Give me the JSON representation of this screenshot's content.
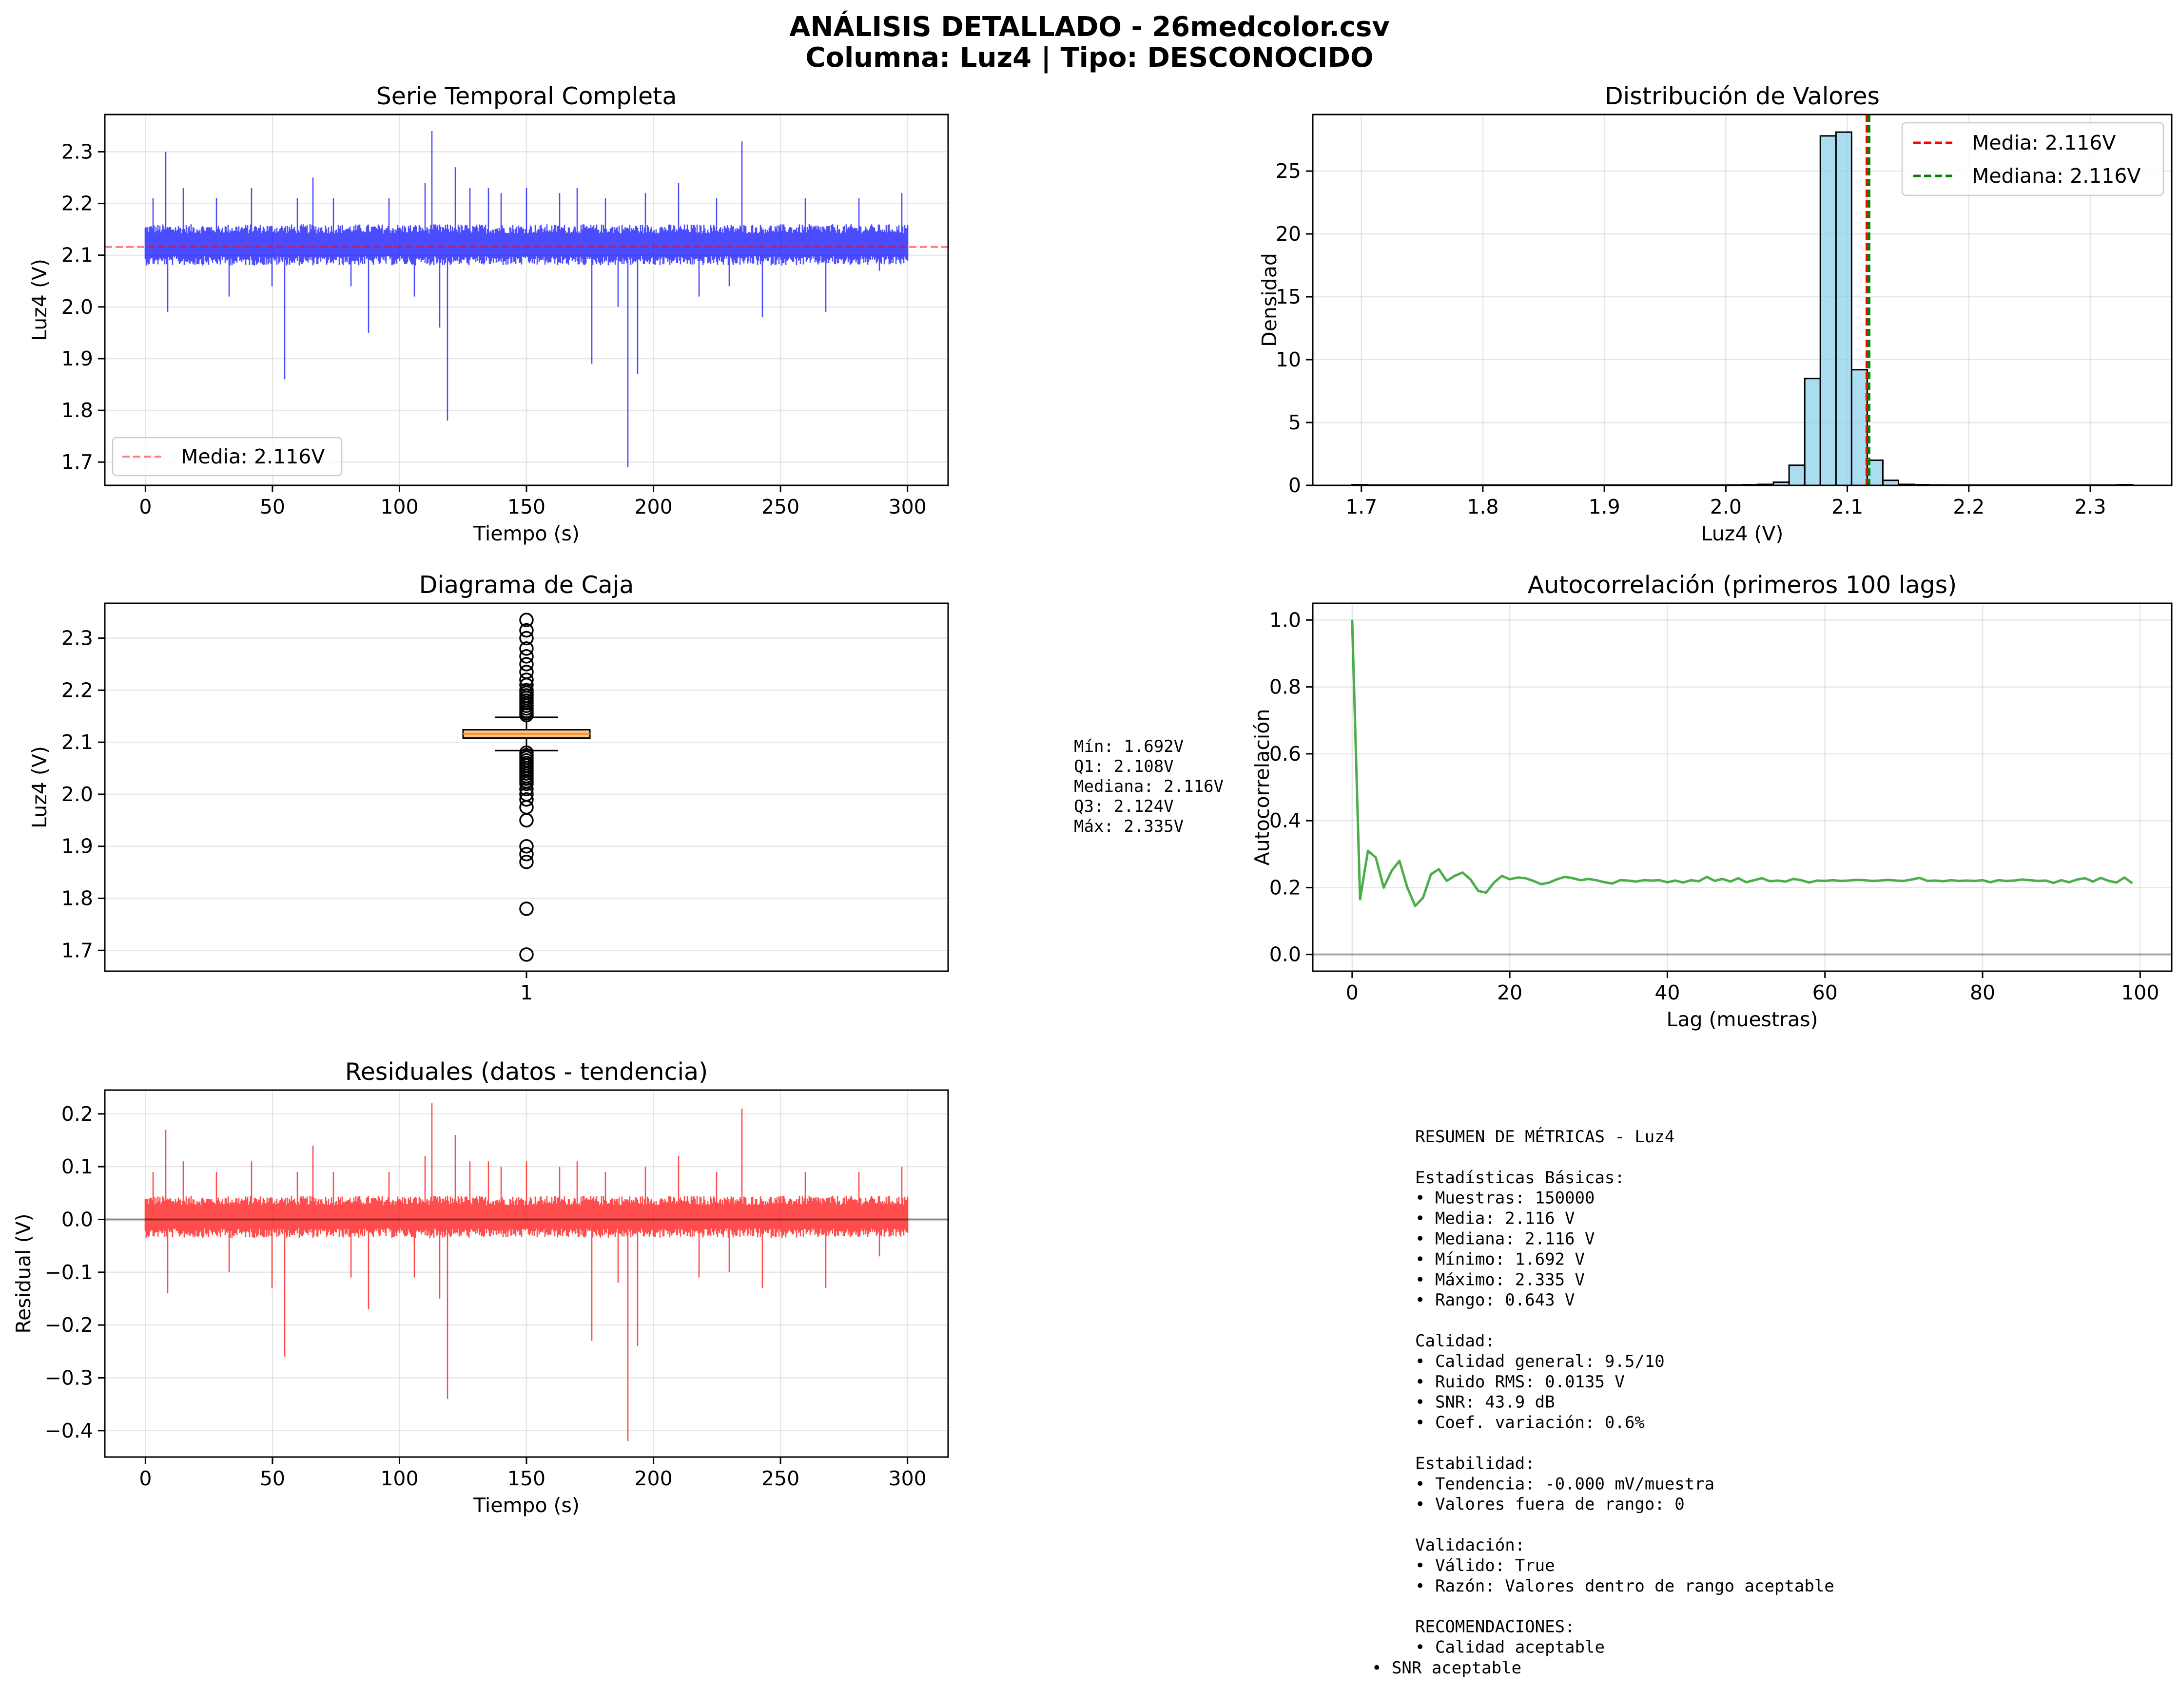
{
  "header": {
    "title_line1": "ANÁLISIS DETALLADO - 26medcolor.csv",
    "title_line2": "Columna: Luz4 | Tipo: DESCONOCIDO"
  },
  "colors": {
    "series": "#0000ff",
    "mean_line": "#ff0000",
    "median_line": "#008000",
    "hist_fill": "#87ceeb",
    "box_fill": "#f9c784",
    "acf_line": "#2ca02c",
    "residual_line": "#ff0000"
  },
  "chart_data": [
    {
      "id": "series",
      "type": "line",
      "title": "Serie Temporal Completa",
      "xlabel": "Tiempo (s)",
      "ylabel": "Luz4 (V)",
      "xlim": [
        -16,
        316
      ],
      "ylim": [
        1.655,
        2.372
      ],
      "xticks": [
        0,
        50,
        100,
        150,
        200,
        250,
        300
      ],
      "yticks": [
        1.7,
        1.8,
        1.9,
        2.0,
        2.1,
        2.2,
        2.3
      ],
      "band": {
        "x": [
          0,
          300
        ],
        "low": 2.08,
        "high": 2.16
      },
      "spikes": [
        {
          "x": 3,
          "y": 2.21
        },
        {
          "x": 8,
          "y": 2.3
        },
        {
          "x": 9,
          "y": 1.99
        },
        {
          "x": 15,
          "y": 2.23
        },
        {
          "x": 28,
          "y": 2.21
        },
        {
          "x": 33,
          "y": 2.02
        },
        {
          "x": 42,
          "y": 2.23
        },
        {
          "x": 50,
          "y": 2.04
        },
        {
          "x": 55,
          "y": 1.86
        },
        {
          "x": 60,
          "y": 2.21
        },
        {
          "x": 66,
          "y": 2.25
        },
        {
          "x": 74,
          "y": 2.21
        },
        {
          "x": 81,
          "y": 2.04
        },
        {
          "x": 88,
          "y": 1.95
        },
        {
          "x": 96,
          "y": 2.21
        },
        {
          "x": 106,
          "y": 2.02
        },
        {
          "x": 110,
          "y": 2.24
        },
        {
          "x": 113,
          "y": 2.34
        },
        {
          "x": 116,
          "y": 1.96
        },
        {
          "x": 119,
          "y": 1.78
        },
        {
          "x": 122,
          "y": 2.27
        },
        {
          "x": 128,
          "y": 2.23
        },
        {
          "x": 135,
          "y": 2.23
        },
        {
          "x": 140,
          "y": 2.22
        },
        {
          "x": 150,
          "y": 2.23
        },
        {
          "x": 163,
          "y": 2.22
        },
        {
          "x": 170,
          "y": 2.23
        },
        {
          "x": 176,
          "y": 1.89
        },
        {
          "x": 181,
          "y": 2.21
        },
        {
          "x": 186,
          "y": 2.0
        },
        {
          "x": 190,
          "y": 1.69
        },
        {
          "x": 194,
          "y": 1.87
        },
        {
          "x": 197,
          "y": 2.22
        },
        {
          "x": 210,
          "y": 2.24
        },
        {
          "x": 218,
          "y": 2.02
        },
        {
          "x": 225,
          "y": 2.21
        },
        {
          "x": 230,
          "y": 2.04
        },
        {
          "x": 235,
          "y": 2.32
        },
        {
          "x": 243,
          "y": 1.98
        },
        {
          "x": 260,
          "y": 2.21
        },
        {
          "x": 268,
          "y": 1.99
        },
        {
          "x": 281,
          "y": 2.21
        },
        {
          "x": 289,
          "y": 2.07
        },
        {
          "x": 298,
          "y": 2.22
        }
      ],
      "mean": 2.116,
      "legend": [
        {
          "label": "Media: 2.116V",
          "color": "#ff0000",
          "style": "dashed",
          "alpha": 0.5
        }
      ],
      "legend_position": "lower left"
    },
    {
      "id": "histogram",
      "type": "bar",
      "title": "Distribución de Valores",
      "xlabel": "Luz4 (V)",
      "ylabel": "Densidad",
      "xlim": [
        1.66,
        2.367
      ],
      "ylim": [
        0,
        29.5
      ],
      "xticks": [
        1.7,
        1.8,
        1.9,
        2.0,
        2.1,
        2.2,
        2.3
      ],
      "yticks": [
        0,
        5,
        10,
        15,
        20,
        25
      ],
      "bins": {
        "start": 1.692,
        "width": 0.01286
      },
      "values": [
        0.05,
        0.02,
        0.02,
        0.02,
        0.02,
        0.02,
        0.02,
        0.02,
        0.02,
        0.02,
        0.02,
        0.02,
        0.02,
        0.02,
        0.02,
        0.02,
        0.02,
        0.02,
        0.02,
        0.02,
        0.02,
        0.02,
        0.02,
        0.02,
        0.03,
        0.05,
        0.08,
        0.25,
        1.6,
        8.5,
        27.8,
        28.1,
        9.2,
        2.0,
        0.4,
        0.08,
        0.05,
        0.03,
        0.02,
        0.02,
        0.02,
        0.02,
        0.02,
        0.02,
        0.02,
        0.02,
        0.02,
        0.02,
        0.02,
        0.05
      ],
      "mean": 2.116,
      "median": 2.116,
      "legend": [
        {
          "label": "Media: 2.116V",
          "color": "#ff0000",
          "style": "dashed"
        },
        {
          "label": "Mediana: 2.116V",
          "color": "#008000",
          "style": "dashed"
        }
      ],
      "legend_position": "upper right"
    },
    {
      "id": "boxplot",
      "type": "box",
      "title": "Diagrama de Caja",
      "ylabel": "Luz4 (V)",
      "category": "1",
      "ylim": [
        1.66,
        2.367
      ],
      "yticks": [
        1.7,
        1.8,
        1.9,
        2.0,
        2.1,
        2.2,
        2.3
      ],
      "q1": 2.108,
      "median": 2.116,
      "q3": 2.124,
      "whisker_low": 2.084,
      "whisker_high": 2.148,
      "outliers_high": [
        2.152,
        2.156,
        2.16,
        2.165,
        2.17,
        2.175,
        2.18,
        2.185,
        2.19,
        2.195,
        2.2,
        2.21,
        2.22,
        2.235,
        2.25,
        2.265,
        2.28,
        2.3,
        2.315,
        2.335
      ],
      "outliers_low": [
        2.08,
        2.075,
        2.07,
        2.065,
        2.06,
        2.055,
        2.05,
        2.045,
        2.04,
        2.035,
        2.03,
        2.025,
        2.02,
        2.01,
        2.0,
        1.99,
        1.975,
        1.95,
        1.9,
        1.885,
        1.87,
        1.78,
        1.692
      ]
    },
    {
      "id": "acf",
      "type": "line",
      "title": "Autocorrelación (primeros 100 lags)",
      "xlabel": "Lag (muestras)",
      "ylabel": "Autocorrelación",
      "xlim": [
        -5,
        104
      ],
      "ylim": [
        -0.05,
        1.05
      ],
      "xticks": [
        0,
        20,
        40,
        60,
        80,
        100
      ],
      "yticks": [
        0.0,
        0.2,
        0.4,
        0.6,
        0.8,
        1.0
      ],
      "zero_line": 0,
      "values": [
        1.0,
        0.165,
        0.31,
        0.29,
        0.2,
        0.25,
        0.28,
        0.2,
        0.145,
        0.17,
        0.24,
        0.255,
        0.22,
        0.235,
        0.245,
        0.225,
        0.19,
        0.185,
        0.215,
        0.235,
        0.225,
        0.23,
        0.228,
        0.22,
        0.21,
        0.215,
        0.225,
        0.232,
        0.228,
        0.222,
        0.226,
        0.222,
        0.216,
        0.212,
        0.222,
        0.221,
        0.218,
        0.222,
        0.221,
        0.222,
        0.216,
        0.221,
        0.215,
        0.222,
        0.219,
        0.232,
        0.22,
        0.226,
        0.218,
        0.228,
        0.216,
        0.222,
        0.228,
        0.219,
        0.221,
        0.218,
        0.226,
        0.222,
        0.215,
        0.221,
        0.22,
        0.222,
        0.22,
        0.221,
        0.223,
        0.222,
        0.22,
        0.221,
        0.223,
        0.221,
        0.22,
        0.224,
        0.229,
        0.22,
        0.221,
        0.219,
        0.222,
        0.22,
        0.221,
        0.22,
        0.222,
        0.216,
        0.222,
        0.22,
        0.221,
        0.224,
        0.222,
        0.22,
        0.221,
        0.214,
        0.222,
        0.216,
        0.224,
        0.228,
        0.218,
        0.229,
        0.22,
        0.215,
        0.23,
        0.213
      ]
    },
    {
      "id": "residuals",
      "type": "line",
      "title": "Residuales (datos - tendencia)",
      "xlabel": "Tiempo (s)",
      "ylabel": "Residual (V)",
      "xlim": [
        -16,
        316
      ],
      "ylim": [
        -0.45,
        0.245
      ],
      "xticks": [
        0,
        50,
        100,
        150,
        200,
        250,
        300
      ],
      "yticks": [
        -0.4,
        -0.3,
        -0.2,
        -0.1,
        0.0,
        0.1,
        0.2
      ],
      "zero_line": 0,
      "band": {
        "x": [
          0,
          300
        ],
        "low": -0.035,
        "high": 0.045
      },
      "spikes": [
        {
          "x": 3,
          "y": 0.09
        },
        {
          "x": 8,
          "y": 0.17
        },
        {
          "x": 9,
          "y": -0.14
        },
        {
          "x": 15,
          "y": 0.11
        },
        {
          "x": 28,
          "y": 0.09
        },
        {
          "x": 33,
          "y": -0.1
        },
        {
          "x": 42,
          "y": 0.11
        },
        {
          "x": 50,
          "y": -0.13
        },
        {
          "x": 55,
          "y": -0.26
        },
        {
          "x": 60,
          "y": 0.09
        },
        {
          "x": 66,
          "y": 0.14
        },
        {
          "x": 74,
          "y": 0.09
        },
        {
          "x": 81,
          "y": -0.11
        },
        {
          "x": 88,
          "y": -0.17
        },
        {
          "x": 96,
          "y": 0.09
        },
        {
          "x": 106,
          "y": -0.11
        },
        {
          "x": 110,
          "y": 0.12
        },
        {
          "x": 113,
          "y": 0.22
        },
        {
          "x": 116,
          "y": -0.15
        },
        {
          "x": 119,
          "y": -0.34
        },
        {
          "x": 122,
          "y": 0.16
        },
        {
          "x": 128,
          "y": 0.11
        },
        {
          "x": 135,
          "y": 0.11
        },
        {
          "x": 140,
          "y": 0.1
        },
        {
          "x": 150,
          "y": 0.11
        },
        {
          "x": 163,
          "y": 0.1
        },
        {
          "x": 170,
          "y": 0.11
        },
        {
          "x": 176,
          "y": -0.23
        },
        {
          "x": 181,
          "y": 0.09
        },
        {
          "x": 186,
          "y": -0.12
        },
        {
          "x": 190,
          "y": -0.42
        },
        {
          "x": 194,
          "y": -0.24
        },
        {
          "x": 197,
          "y": 0.1
        },
        {
          "x": 210,
          "y": 0.12
        },
        {
          "x": 218,
          "y": -0.11
        },
        {
          "x": 225,
          "y": 0.09
        },
        {
          "x": 230,
          "y": -0.1
        },
        {
          "x": 235,
          "y": 0.21
        },
        {
          "x": 243,
          "y": -0.13
        },
        {
          "x": 260,
          "y": 0.09
        },
        {
          "x": 268,
          "y": -0.13
        },
        {
          "x": 281,
          "y": 0.09
        },
        {
          "x": 289,
          "y": -0.07
        },
        {
          "x": 298,
          "y": 0.1
        }
      ]
    }
  ],
  "box_stats_text": [
    "Mín: 1.692V",
    "Q1: 2.108V",
    "Mediana: 2.116V",
    "Q3: 2.124V",
    "Máx: 2.335V"
  ],
  "summary_text": [
    "RESUMEN DE MÉTRICAS - Luz4",
    "",
    "Estadísticas Básicas:",
    "• Muestras: 150000",
    "• Media: 2.116 V",
    "• Mediana: 2.116 V",
    "• Mínimo: 1.692 V",
    "• Máximo: 2.335 V",
    "• Rango: 0.643 V",
    "",
    "Calidad:",
    "• Calidad general: 9.5/10",
    "• Ruido RMS: 0.0135 V",
    "• SNR: 43.9 dB",
    "• Coef. variación: 0.6%",
    "",
    "Estabilidad:",
    "• Tendencia: -0.000 mV/muestra",
    "• Valores fuera de rango: 0",
    "",
    "Validación:",
    "• Válido: True",
    "• Razón: Valores dentro de rango aceptable",
    "",
    "RECOMENDACIONES:",
    "• Calidad aceptable"
  ],
  "summary_last_line": "• SNR aceptable"
}
